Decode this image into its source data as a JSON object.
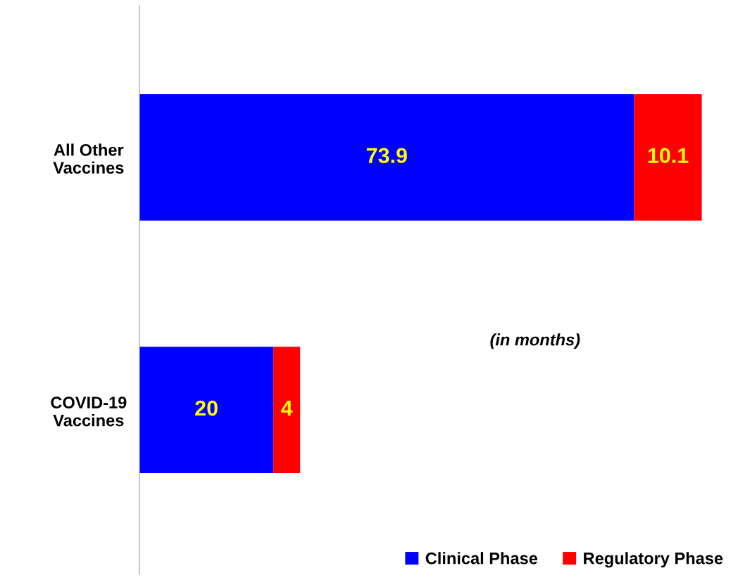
{
  "chart_data": {
    "type": "bar",
    "orientation": "horizontal",
    "stacked": true,
    "categories": [
      "All Other\nVaccines",
      "COVID-19\nVaccines"
    ],
    "series": [
      {
        "name": "Clinical Phase",
        "color": "#0000ff",
        "values": [
          73.9,
          20
        ]
      },
      {
        "name": "Regulatory Phase",
        "color": "#ff0000",
        "values": [
          10.1,
          4
        ]
      }
    ],
    "data_labels": true,
    "legend": "bottom right",
    "grid": false,
    "tick_labels": "y",
    "annotations": [
      "(in months)"
    ]
  }
}
